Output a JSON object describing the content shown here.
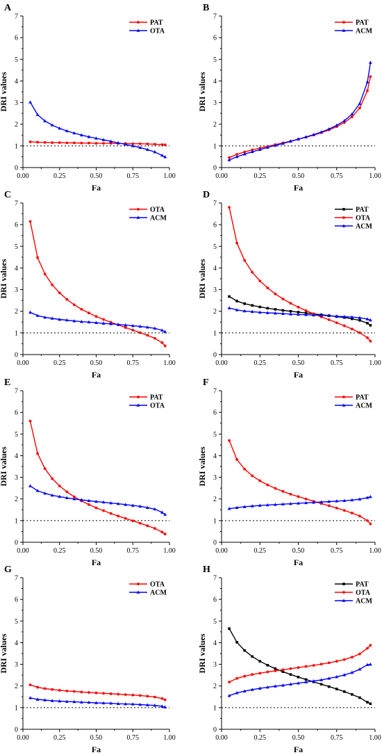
{
  "chart_data": [
    {
      "type": "line",
      "panel": "A",
      "xlabel": "Fa",
      "ylabel": "DRI values",
      "xlim": [
        0,
        1
      ],
      "ylim": [
        0,
        7
      ],
      "xticks": [
        "0.00",
        "0.25",
        "0.50",
        "0.75",
        "1.00"
      ],
      "yticks": [
        "0",
        "1",
        "2",
        "3",
        "4",
        "5",
        "6",
        "7"
      ],
      "reference_line": 1,
      "legend_position": "top-right",
      "x": [
        0.05,
        0.1,
        0.15,
        0.2,
        0.25,
        0.3,
        0.35,
        0.4,
        0.45,
        0.5,
        0.55,
        0.6,
        0.65,
        0.7,
        0.75,
        0.8,
        0.85,
        0.9,
        0.95,
        0.97
      ],
      "series": [
        {
          "name": "PAT",
          "color": "#ff0000",
          "marker": "circle",
          "values": [
            1.19,
            1.17,
            1.16,
            1.15,
            1.15,
            1.14,
            1.14,
            1.13,
            1.13,
            1.12,
            1.12,
            1.12,
            1.11,
            1.11,
            1.1,
            1.1,
            1.09,
            1.08,
            1.06,
            1.05
          ]
        },
        {
          "name": "OTA",
          "color": "#0000ff",
          "marker": "triangle",
          "values": [
            3.02,
            2.44,
            2.15,
            1.96,
            1.81,
            1.69,
            1.59,
            1.5,
            1.42,
            1.35,
            1.28,
            1.21,
            1.14,
            1.07,
            1.0,
            0.92,
            0.83,
            0.72,
            0.56,
            0.49
          ]
        }
      ]
    },
    {
      "type": "line",
      "panel": "B",
      "xlabel": "Fa",
      "ylabel": "DRI values",
      "xlim": [
        0,
        1
      ],
      "ylim": [
        0,
        7
      ],
      "xticks": [
        "0.00",
        "0.25",
        "0.50",
        "0.75",
        "1.00"
      ],
      "yticks": [
        "0",
        "1",
        "2",
        "3",
        "4",
        "5",
        "6",
        "7"
      ],
      "reference_line": 1,
      "legend_position": "top-right",
      "x": [
        0.05,
        0.1,
        0.15,
        0.2,
        0.25,
        0.3,
        0.35,
        0.4,
        0.45,
        0.5,
        0.55,
        0.6,
        0.65,
        0.7,
        0.75,
        0.8,
        0.85,
        0.9,
        0.95,
        0.97
      ],
      "series": [
        {
          "name": "PAT",
          "color": "#ff0000",
          "marker": "circle",
          "values": [
            0.46,
            0.61,
            0.72,
            0.82,
            0.9,
            0.98,
            1.06,
            1.14,
            1.22,
            1.31,
            1.4,
            1.5,
            1.61,
            1.74,
            1.89,
            2.08,
            2.34,
            2.75,
            3.55,
            4.2
          ]
        },
        {
          "name": "ACM",
          "color": "#0000ff",
          "marker": "triangle",
          "values": [
            0.35,
            0.5,
            0.62,
            0.73,
            0.83,
            0.93,
            1.02,
            1.11,
            1.21,
            1.31,
            1.41,
            1.52,
            1.64,
            1.78,
            1.95,
            2.16,
            2.47,
            2.95,
            3.95,
            4.85
          ]
        }
      ]
    },
    {
      "type": "line",
      "panel": "C",
      "xlabel": "Fa",
      "ylabel": "DRI values",
      "xlim": [
        0,
        1
      ],
      "ylim": [
        0,
        7
      ],
      "xticks": [
        "0.00",
        "0.25",
        "0.50",
        "0.75",
        "1.00"
      ],
      "yticks": [
        "0",
        "1",
        "2",
        "3",
        "4",
        "5",
        "6",
        "7"
      ],
      "reference_line": 1,
      "legend_position": "top-right",
      "x": [
        0.05,
        0.1,
        0.15,
        0.2,
        0.25,
        0.3,
        0.35,
        0.4,
        0.45,
        0.5,
        0.55,
        0.6,
        0.65,
        0.7,
        0.75,
        0.8,
        0.85,
        0.9,
        0.95,
        0.97
      ],
      "series": [
        {
          "name": "OTA",
          "color": "#ff0000",
          "marker": "circle",
          "values": [
            6.15,
            4.48,
            3.72,
            3.22,
            2.85,
            2.55,
            2.3,
            2.09,
            1.92,
            1.76,
            1.62,
            1.49,
            1.37,
            1.25,
            1.13,
            1.01,
            0.89,
            0.75,
            0.55,
            0.4
          ]
        },
        {
          "name": "ACM",
          "color": "#0000ff",
          "marker": "triangle",
          "values": [
            1.95,
            1.8,
            1.72,
            1.67,
            1.62,
            1.59,
            1.55,
            1.52,
            1.5,
            1.47,
            1.44,
            1.42,
            1.39,
            1.36,
            1.33,
            1.3,
            1.26,
            1.21,
            1.12,
            1.05
          ]
        }
      ]
    },
    {
      "type": "line",
      "panel": "D",
      "xlabel": "Fa",
      "ylabel": "DRI values",
      "xlim": [
        0,
        1
      ],
      "ylim": [
        0,
        7
      ],
      "xticks": [
        "0.00",
        "0.25",
        "0.50",
        "0.75",
        "1.00"
      ],
      "yticks": [
        "0",
        "1",
        "2",
        "3",
        "4",
        "5",
        "6",
        "7"
      ],
      "reference_line": 1,
      "legend_position": "top-right",
      "x": [
        0.05,
        0.1,
        0.15,
        0.2,
        0.25,
        0.3,
        0.35,
        0.4,
        0.45,
        0.5,
        0.55,
        0.6,
        0.65,
        0.7,
        0.75,
        0.8,
        0.85,
        0.9,
        0.95,
        0.97
      ],
      "series": [
        {
          "name": "PAT",
          "color": "#000000",
          "marker": "square",
          "values": [
            2.68,
            2.47,
            2.35,
            2.27,
            2.2,
            2.14,
            2.09,
            2.04,
            2.0,
            1.96,
            1.92,
            1.88,
            1.84,
            1.8,
            1.75,
            1.71,
            1.65,
            1.58,
            1.45,
            1.35
          ]
        },
        {
          "name": "OTA",
          "color": "#ff0000",
          "marker": "circle",
          "values": [
            6.8,
            5.15,
            4.35,
            3.8,
            3.4,
            3.08,
            2.8,
            2.57,
            2.37,
            2.19,
            2.03,
            1.88,
            1.74,
            1.61,
            1.47,
            1.33,
            1.18,
            1.01,
            0.78,
            0.62
          ]
        },
        {
          "name": "ACM",
          "color": "#0000ff",
          "marker": "triangle",
          "values": [
            2.15,
            2.06,
            2.01,
            1.98,
            1.95,
            1.93,
            1.91,
            1.89,
            1.87,
            1.85,
            1.84,
            1.82,
            1.81,
            1.79,
            1.77,
            1.75,
            1.73,
            1.7,
            1.64,
            1.59
          ]
        }
      ]
    },
    {
      "type": "line",
      "panel": "E",
      "xlabel": "Fa",
      "ylabel": "DRI values",
      "xlim": [
        0,
        1
      ],
      "ylim": [
        0,
        7
      ],
      "xticks": [
        "0.00",
        "0.25",
        "0.50",
        "0.75",
        "1.00"
      ],
      "yticks": [
        "0",
        "1",
        "2",
        "3",
        "4",
        "5",
        "6",
        "7"
      ],
      "reference_line": 1,
      "legend_position": "top-right",
      "x": [
        0.05,
        0.1,
        0.15,
        0.2,
        0.25,
        0.3,
        0.35,
        0.4,
        0.45,
        0.5,
        0.55,
        0.6,
        0.65,
        0.7,
        0.75,
        0.8,
        0.85,
        0.9,
        0.95,
        0.97
      ],
      "series": [
        {
          "name": "PAT",
          "color": "#ff0000",
          "marker": "circle",
          "values": [
            5.6,
            4.1,
            3.4,
            2.94,
            2.6,
            2.33,
            2.1,
            1.91,
            1.74,
            1.59,
            1.46,
            1.33,
            1.21,
            1.1,
            0.99,
            0.88,
            0.76,
            0.64,
            0.47,
            0.38
          ]
        },
        {
          "name": "OTA",
          "color": "#0000ff",
          "marker": "triangle",
          "values": [
            2.6,
            2.38,
            2.26,
            2.17,
            2.11,
            2.05,
            2.0,
            1.96,
            1.92,
            1.88,
            1.85,
            1.81,
            1.78,
            1.74,
            1.7,
            1.66,
            1.6,
            1.53,
            1.38,
            1.28
          ]
        }
      ]
    },
    {
      "type": "line",
      "panel": "F",
      "xlabel": "Fa",
      "ylabel": "DRI values",
      "xlim": [
        0,
        1
      ],
      "ylim": [
        0,
        7
      ],
      "xticks": [
        "0.00",
        "0.25",
        "0.50",
        "0.75",
        "1.00"
      ],
      "yticks": [
        "0",
        "1",
        "2",
        "3",
        "4",
        "5",
        "6",
        "7"
      ],
      "reference_line": 1,
      "legend_position": "top-right",
      "x": [
        0.05,
        0.1,
        0.15,
        0.2,
        0.25,
        0.3,
        0.35,
        0.4,
        0.45,
        0.5,
        0.55,
        0.6,
        0.65,
        0.7,
        0.75,
        0.8,
        0.85,
        0.9,
        0.95,
        0.97
      ],
      "series": [
        {
          "name": "PAT",
          "color": "#ff0000",
          "marker": "circle",
          "values": [
            4.7,
            3.82,
            3.38,
            3.07,
            2.84,
            2.65,
            2.49,
            2.35,
            2.22,
            2.11,
            2.0,
            1.89,
            1.79,
            1.69,
            1.58,
            1.47,
            1.35,
            1.21,
            1.0,
            0.85
          ]
        },
        {
          "name": "ACM",
          "color": "#0000ff",
          "marker": "triangle",
          "values": [
            1.55,
            1.6,
            1.64,
            1.67,
            1.7,
            1.72,
            1.74,
            1.76,
            1.78,
            1.8,
            1.82,
            1.84,
            1.86,
            1.88,
            1.9,
            1.92,
            1.95,
            1.99,
            2.06,
            2.1
          ]
        }
      ]
    },
    {
      "type": "line",
      "panel": "G",
      "xlabel": "Fa",
      "ylabel": "DRI values",
      "xlim": [
        0,
        1
      ],
      "ylim": [
        0,
        7
      ],
      "xticks": [
        "0.00",
        "0.25",
        "0.50",
        "0.75",
        "1.00"
      ],
      "yticks": [
        "0",
        "1",
        "2",
        "3",
        "4",
        "5",
        "6",
        "7"
      ],
      "reference_line": 1,
      "legend_position": "top-right",
      "x": [
        0.05,
        0.1,
        0.15,
        0.2,
        0.25,
        0.3,
        0.35,
        0.4,
        0.45,
        0.5,
        0.55,
        0.6,
        0.65,
        0.7,
        0.75,
        0.8,
        0.85,
        0.9,
        0.95,
        0.97
      ],
      "series": [
        {
          "name": "OTA",
          "color": "#ff0000",
          "marker": "circle",
          "values": [
            2.05,
            1.94,
            1.88,
            1.84,
            1.8,
            1.77,
            1.75,
            1.72,
            1.7,
            1.68,
            1.66,
            1.64,
            1.62,
            1.6,
            1.58,
            1.56,
            1.53,
            1.49,
            1.42,
            1.36
          ]
        },
        {
          "name": "ACM",
          "color": "#0000ff",
          "marker": "triangle",
          "values": [
            1.45,
            1.38,
            1.35,
            1.32,
            1.3,
            1.28,
            1.27,
            1.25,
            1.24,
            1.22,
            1.21,
            1.2,
            1.18,
            1.17,
            1.16,
            1.14,
            1.12,
            1.1,
            1.06,
            1.02
          ]
        }
      ]
    },
    {
      "type": "line",
      "panel": "H",
      "xlabel": "Fa",
      "ylabel": "DRI values",
      "xlim": [
        0,
        1
      ],
      "ylim": [
        0,
        7
      ],
      "xticks": [
        "0.00",
        "0.25",
        "0.50",
        "0.75",
        "1.00"
      ],
      "yticks": [
        "0",
        "1",
        "2",
        "3",
        "4",
        "5",
        "6",
        "7"
      ],
      "reference_line": 1,
      "legend_position": "top-right",
      "x": [
        0.05,
        0.1,
        0.15,
        0.2,
        0.25,
        0.3,
        0.35,
        0.4,
        0.45,
        0.5,
        0.55,
        0.6,
        0.65,
        0.7,
        0.75,
        0.8,
        0.85,
        0.9,
        0.95,
        0.97
      ],
      "series": [
        {
          "name": "PAT",
          "color": "#000000",
          "marker": "square",
          "values": [
            4.65,
            4.02,
            3.64,
            3.36,
            3.14,
            2.96,
            2.8,
            2.66,
            2.53,
            2.41,
            2.3,
            2.19,
            2.08,
            1.97,
            1.86,
            1.74,
            1.61,
            1.46,
            1.25,
            1.18
          ]
        },
        {
          "name": "OTA",
          "color": "#ff0000",
          "marker": "circle",
          "values": [
            2.18,
            2.35,
            2.45,
            2.53,
            2.59,
            2.65,
            2.7,
            2.75,
            2.8,
            2.85,
            2.9,
            2.95,
            3.01,
            3.07,
            3.14,
            3.22,
            3.33,
            3.48,
            3.74,
            3.88
          ]
        },
        {
          "name": "ACM",
          "color": "#0000ff",
          "marker": "triangle",
          "values": [
            1.55,
            1.68,
            1.76,
            1.83,
            1.89,
            1.94,
            1.99,
            2.03,
            2.08,
            2.13,
            2.18,
            2.23,
            2.28,
            2.35,
            2.42,
            2.51,
            2.62,
            2.77,
            2.98,
            3.0
          ]
        }
      ]
    }
  ]
}
